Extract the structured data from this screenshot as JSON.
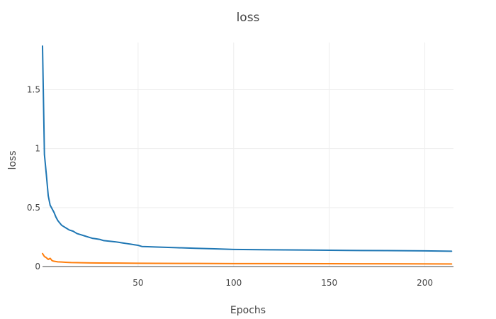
{
  "chart_data": {
    "type": "line",
    "title": "loss",
    "xlabel": "Epochs",
    "ylabel": "loss",
    "xlim": [
      0,
      215
    ],
    "ylim": [
      0,
      1.9
    ],
    "x_ticks": [
      50,
      100,
      150,
      200
    ],
    "x_tick_labels": [
      "50",
      "100",
      "150",
      "200"
    ],
    "y_ticks": [
      0,
      0.5,
      1,
      1.5
    ],
    "y_tick_labels": [
      "0",
      "0.5",
      "1",
      "1.5"
    ],
    "grid": true,
    "series": [
      {
        "color": "#1f77b4",
        "x": [
          0,
          1,
          2,
          3,
          4,
          5,
          6,
          7,
          8,
          9,
          10,
          11,
          12,
          14,
          16,
          18,
          20,
          22,
          24,
          26,
          28,
          30,
          32,
          35,
          38,
          40,
          42,
          44,
          46,
          48,
          50,
          52,
          55,
          60,
          70,
          80,
          90,
          100,
          120,
          140,
          160,
          180,
          200,
          214
        ],
        "y": [
          1.87,
          0.95,
          0.78,
          0.6,
          0.52,
          0.49,
          0.46,
          0.42,
          0.39,
          0.37,
          0.35,
          0.34,
          0.33,
          0.31,
          0.3,
          0.28,
          0.27,
          0.26,
          0.25,
          0.24,
          0.235,
          0.23,
          0.22,
          0.215,
          0.21,
          0.205,
          0.2,
          0.195,
          0.19,
          0.185,
          0.18,
          0.17,
          0.168,
          0.165,
          0.16,
          0.155,
          0.15,
          0.145,
          0.142,
          0.14,
          0.137,
          0.135,
          0.133,
          0.13
        ]
      },
      {
        "color": "#ff7f0e",
        "x": [
          0,
          1,
          2,
          3,
          4,
          5,
          6,
          8,
          10,
          12,
          15,
          18,
          20,
          25,
          30,
          40,
          50,
          60,
          80,
          100,
          120,
          150,
          180,
          214
        ],
        "y": [
          0.11,
          0.085,
          0.075,
          0.06,
          0.07,
          0.05,
          0.045,
          0.04,
          0.038,
          0.036,
          0.034,
          0.033,
          0.032,
          0.031,
          0.03,
          0.029,
          0.028,
          0.027,
          0.026,
          0.025,
          0.025,
          0.024,
          0.023,
          0.022
        ]
      }
    ]
  }
}
